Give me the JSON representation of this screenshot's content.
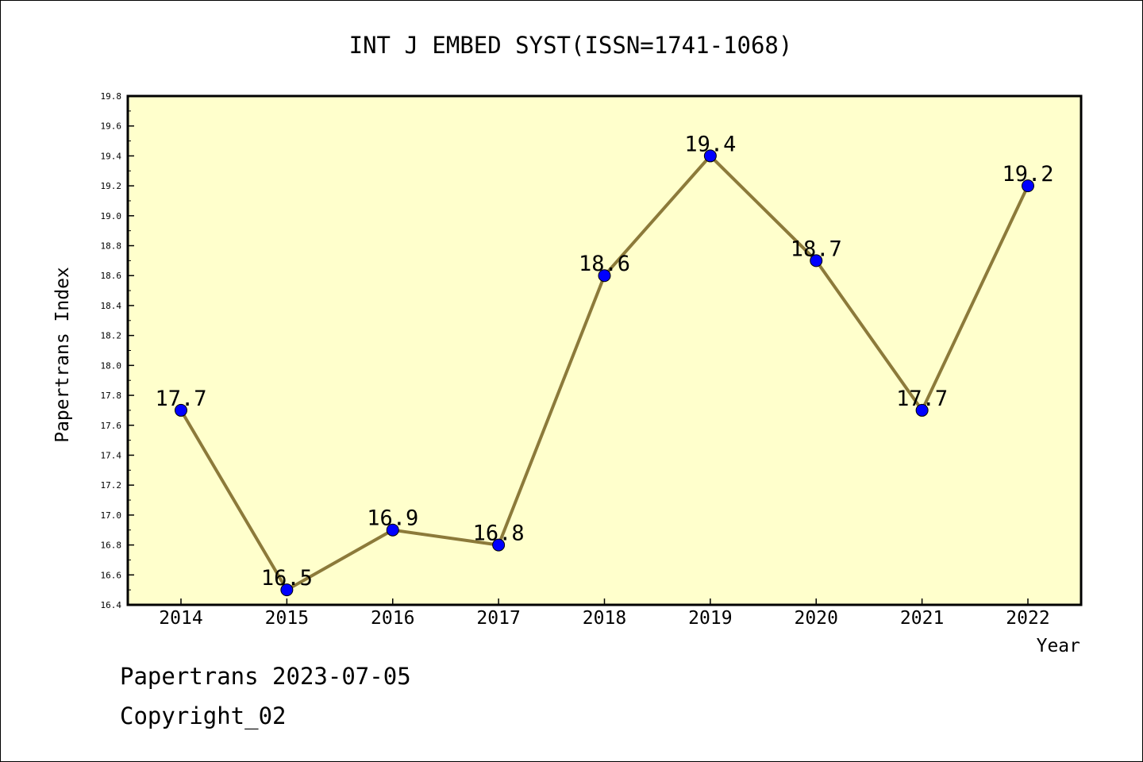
{
  "chart_data": {
    "type": "line",
    "title": "INT J EMBED SYST(ISSN=1741-1068)",
    "xlabel": "Year",
    "ylabel": "Papertrans Index",
    "categories": [
      "2014",
      "2015",
      "2016",
      "2017",
      "2018",
      "2019",
      "2020",
      "2021",
      "2022"
    ],
    "series": [
      {
        "values": [
          17.7,
          16.5,
          16.9,
          16.8,
          18.6,
          19.4,
          18.7,
          17.7,
          19.2
        ],
        "labels": [
          "17.7",
          "16.5",
          "16.9",
          "16.8",
          "18.6",
          "19.4",
          "18.7",
          "17.7",
          "19.2"
        ]
      }
    ],
    "ylim": [
      16.4,
      19.8
    ],
    "yticks": [
      "16.4",
      "16.6",
      "16.8",
      "17.0",
      "17.2",
      "17.4",
      "17.6",
      "17.8",
      "18.0",
      "18.2",
      "18.4",
      "18.6",
      "18.8",
      "19.0",
      "19.2",
      "19.4",
      "19.6",
      "19.8"
    ],
    "grid": false,
    "colors": {
      "plot_background": "#ffffcc",
      "line": "#8c7a3a",
      "marker": "#0000ff"
    }
  },
  "footer": {
    "line1": "Papertrans 2023-07-05",
    "line2": "Copyright_02"
  }
}
